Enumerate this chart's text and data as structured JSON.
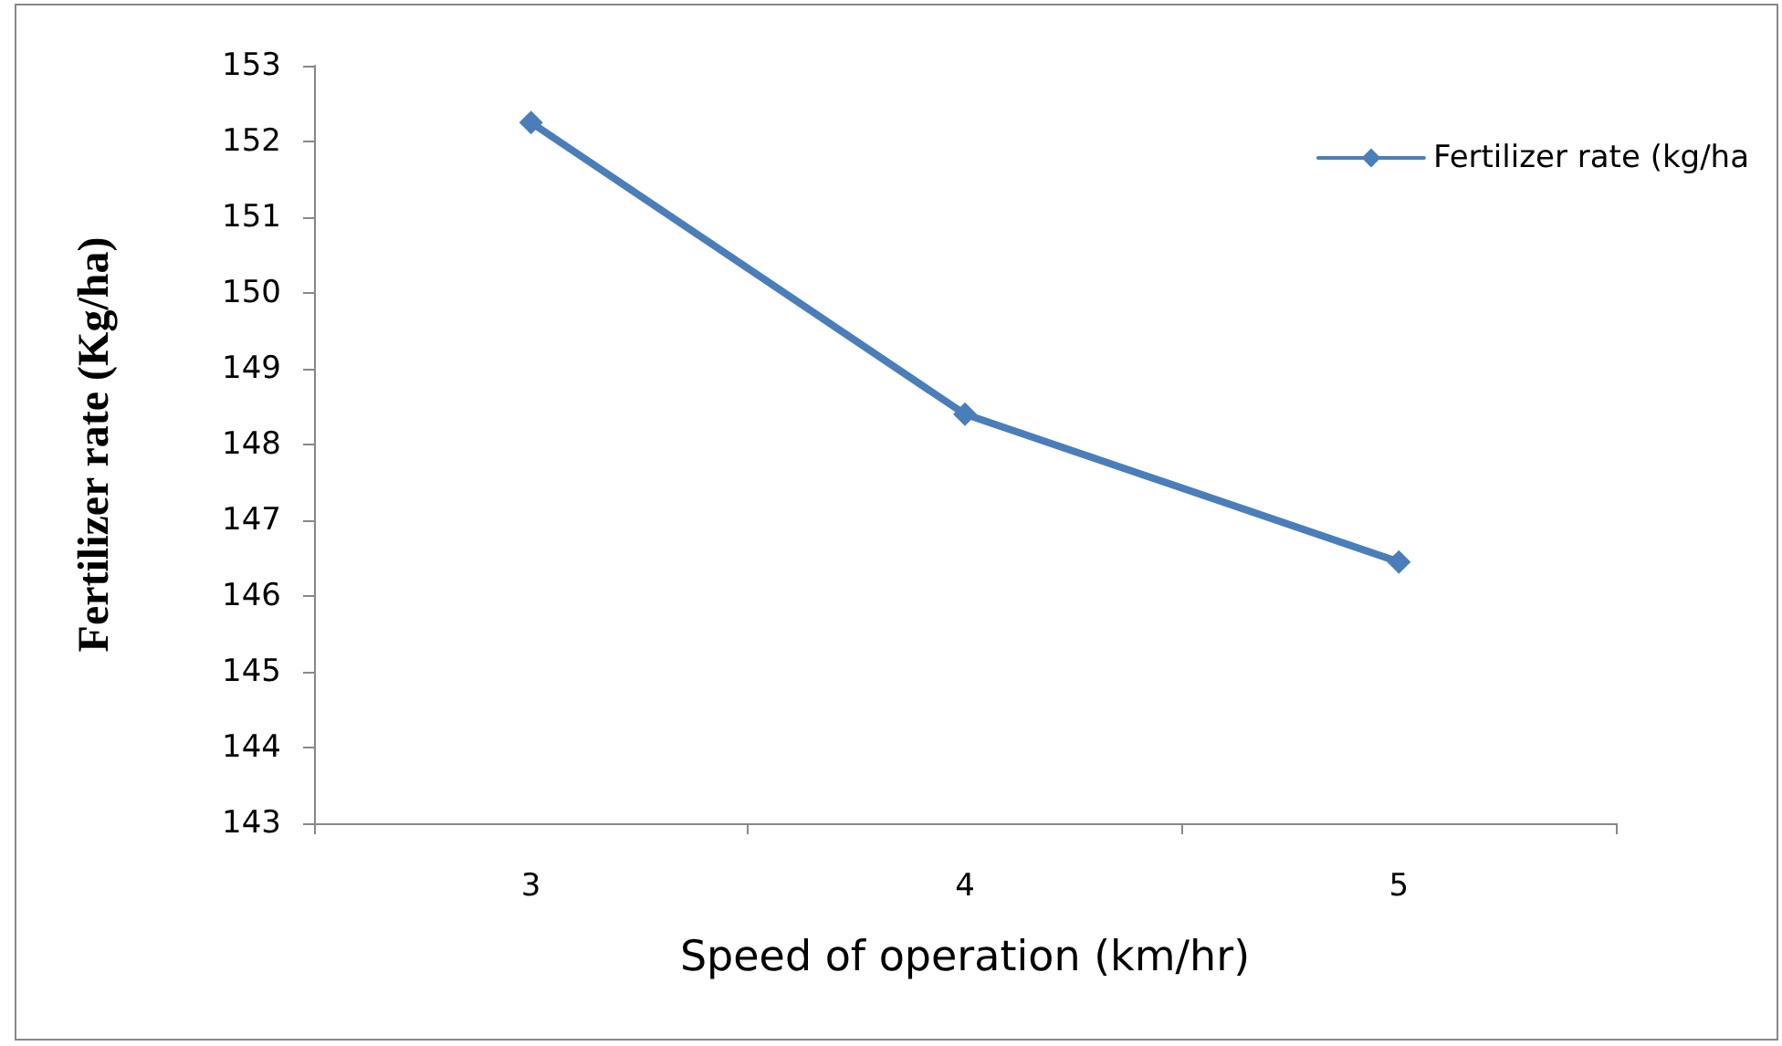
{
  "chart_data": {
    "type": "line",
    "xlabel": "Speed of operation (km/hr)",
    "ylabel": "Fertilizer rate (Kg/ha)",
    "categories": [
      "3",
      "4",
      "5"
    ],
    "series": [
      {
        "name": "Fertilizer rate (kg/ha",
        "color": "#4a7ebb",
        "values": [
          152.25,
          148.4,
          146.45
        ]
      }
    ],
    "ylim": [
      143,
      153
    ],
    "yticks": [
      143,
      144,
      145,
      146,
      147,
      148,
      149,
      150,
      151,
      152,
      153
    ],
    "grid": false,
    "legend": "top right",
    "marker": "diamond",
    "line_style": "solid"
  }
}
